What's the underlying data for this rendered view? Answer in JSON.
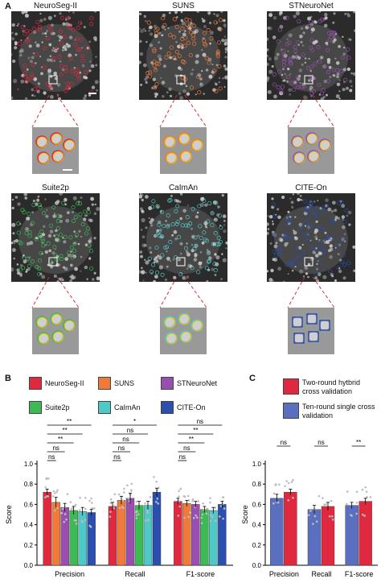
{
  "panels": {
    "a_letter": "A",
    "b_letter": "B",
    "c_letter": "C"
  },
  "methods": [
    {
      "name": "NeuroSeg-II",
      "color": "#e0283e"
    },
    {
      "name": "SUNS",
      "color": "#f07a3a"
    },
    {
      "name": "STNeuroNet",
      "color": "#9a4fb0"
    },
    {
      "name": "Suite2p",
      "color": "#3cba54"
    },
    {
      "name": "CaImAn",
      "color": "#4fc8c8"
    },
    {
      "name": "CITE-On",
      "color": "#2a4fb0"
    }
  ],
  "image_titles": [
    "NeuroSeg-II",
    "SUNS",
    "STNeuroNet",
    "Suite2p",
    "CaImAn",
    "CITE-On"
  ],
  "legend_c": [
    {
      "label": "Two-round hytbrid cross validation",
      "color": "#e0283e"
    },
    {
      "label": "Ten-round single cross validation",
      "color": "#5b6fc0"
    }
  ],
  "chart_data": [
    {
      "type": "bar",
      "panel": "B",
      "categories": [
        "Precision",
        "Recall",
        "F1-score"
      ],
      "ylabel": "Score",
      "ylim": [
        0.0,
        1.0
      ],
      "yticks": [
        "0.0",
        "0.2",
        "0.4",
        "0.6",
        "0.8",
        "1.0"
      ],
      "series": [
        {
          "name": "NeuroSeg-II",
          "values": [
            0.72,
            0.58,
            0.63
          ],
          "err": [
            0.03,
            0.04,
            0.03
          ]
        },
        {
          "name": "SUNS",
          "values": [
            0.62,
            0.64,
            0.61
          ],
          "err": [
            0.05,
            0.04,
            0.03
          ]
        },
        {
          "name": "STNeuroNet",
          "values": [
            0.57,
            0.66,
            0.6
          ],
          "err": [
            0.04,
            0.05,
            0.03
          ]
        },
        {
          "name": "Suite2p",
          "values": [
            0.54,
            0.59,
            0.55
          ],
          "err": [
            0.04,
            0.04,
            0.03
          ]
        },
        {
          "name": "CaImAn",
          "values": [
            0.53,
            0.59,
            0.54
          ],
          "err": [
            0.04,
            0.04,
            0.03
          ]
        },
        {
          "name": "CITE-On",
          "values": [
            0.52,
            0.72,
            0.6
          ],
          "err": [
            0.03,
            0.04,
            0.03
          ]
        }
      ],
      "significance": [
        {
          "group": "Precision",
          "labels": [
            "**",
            "**",
            "**",
            "ns",
            "ns"
          ]
        },
        {
          "group": "Recall",
          "labels": [
            "*",
            "ns",
            "ns",
            "ns",
            "ns"
          ]
        },
        {
          "group": "F1-score",
          "labels": [
            "ns",
            "**",
            "**",
            "ns",
            "ns"
          ]
        }
      ]
    },
    {
      "type": "bar",
      "panel": "C",
      "categories": [
        "Precision",
        "Recall",
        "F1-score"
      ],
      "ylabel": "Score",
      "ylim": [
        0.0,
        1.0
      ],
      "yticks": [
        "0.0",
        "0.2",
        "0.4",
        "0.6",
        "0.8",
        "1.0"
      ],
      "series": [
        {
          "name": "Ten-round single cross validation",
          "values": [
            0.66,
            0.55,
            0.59
          ],
          "err": [
            0.04,
            0.04,
            0.03
          ]
        },
        {
          "name": "Two-round hytbrid cross validation",
          "values": [
            0.72,
            0.58,
            0.63
          ],
          "err": [
            0.03,
            0.04,
            0.03
          ]
        }
      ],
      "significance": [
        "ns",
        "ns",
        "**"
      ]
    }
  ]
}
